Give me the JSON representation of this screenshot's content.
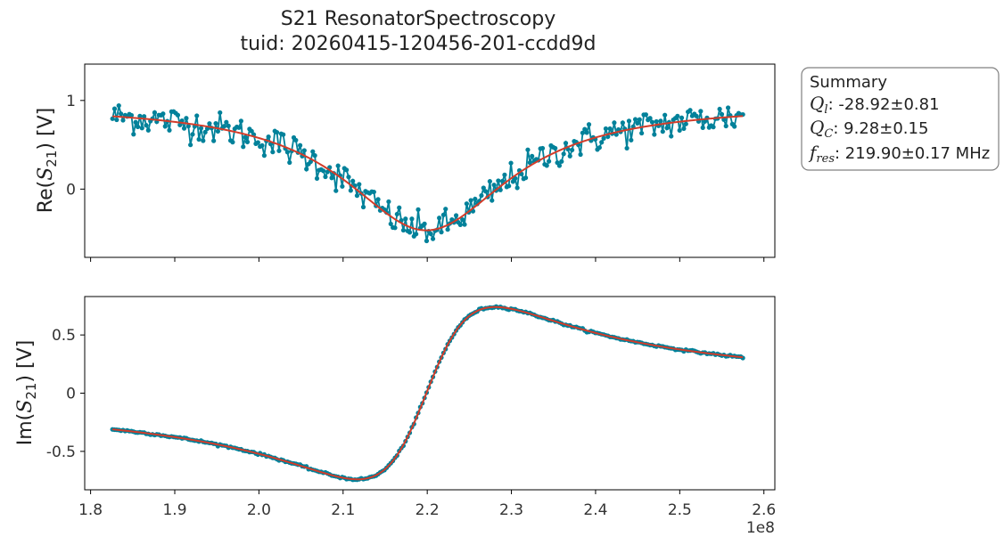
{
  "figure": {
    "title_line1": "S21 ResonatorSpectroscopy",
    "title_line2": "tuid: 20260415-120456-201-ccdd9d",
    "x_offset_label": "1e8",
    "colors": {
      "data": "#00819a",
      "fit": "#d23c2a",
      "axes": "#000000",
      "summary_border": "#808080"
    }
  },
  "summary": {
    "heading": "Summary",
    "items": [
      {
        "symbol": "Q",
        "subscript": "l",
        "value": "-28.92±0.81"
      },
      {
        "symbol": "Q",
        "subscript": "C",
        "value": "9.28±0.15"
      },
      {
        "symbol": "f",
        "subscript": "res",
        "value": "219.90±0.17 MHz"
      }
    ]
  },
  "chart_data": [
    {
      "type": "line",
      "panel": "top",
      "ylabel_prefix": "Re",
      "ylabel_var": "S",
      "ylabel_sub": "21",
      "ylabel_unit": "[V]",
      "xlim": [
        1.793,
        2.613
      ],
      "ylim": [
        -0.77,
        1.41
      ],
      "xticks": [
        1.8,
        1.9,
        2.0,
        2.1,
        2.2,
        2.3,
        2.4,
        2.5,
        2.6
      ],
      "yticks": [
        0,
        1
      ],
      "ytick_labels": [
        "0",
        "1"
      ],
      "show_xtick_labels": false,
      "x_range": [
        1.826,
        2.575
      ],
      "num_points": 300,
      "model": "lorentzian_dip",
      "f0": 2.199,
      "baseline": 0.955,
      "depth": 1.42,
      "half_width": 0.12,
      "noise_std": 0.09,
      "series": [
        {
          "name": "data",
          "style": "line+markers",
          "color": "#00819a"
        },
        {
          "name": "fit",
          "style": "line",
          "color": "#d23c2a"
        }
      ]
    },
    {
      "type": "line",
      "panel": "bottom",
      "ylabel_prefix": "Im",
      "ylabel_var": "S",
      "ylabel_sub": "21",
      "ylabel_unit": "[V]",
      "xlim": [
        1.793,
        2.613
      ],
      "ylim": [
        -0.83,
        0.83
      ],
      "xticks": [
        1.8,
        1.9,
        2.0,
        2.1,
        2.2,
        2.3,
        2.4,
        2.5,
        2.6
      ],
      "xtick_labels": [
        "1.8",
        "1.9",
        "2.0",
        "2.1",
        "2.2",
        "2.3",
        "2.4",
        "2.5",
        "2.6"
      ],
      "yticks": [
        -0.5,
        0,
        0.5
      ],
      "ytick_labels": [
        "-0.5",
        "0",
        "0.5"
      ],
      "show_xtick_labels": true,
      "x_range": [
        1.826,
        2.575
      ],
      "num_points": 300,
      "model": "lorentzian_dispersive",
      "f0": 2.199,
      "amplitude": 0.74,
      "half_width": 0.082,
      "noise_std": 0.004,
      "series": [
        {
          "name": "data",
          "style": "line+markers",
          "color": "#00819a"
        },
        {
          "name": "fit",
          "style": "line",
          "color": "#d23c2a"
        }
      ]
    }
  ]
}
